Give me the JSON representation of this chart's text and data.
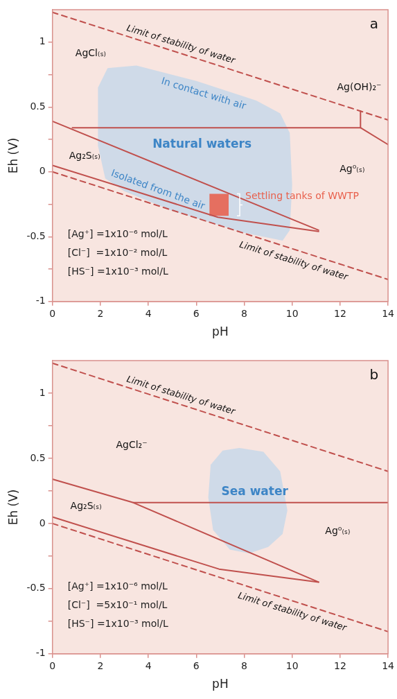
{
  "chart_data": [
    {
      "type": "line",
      "title": "a",
      "xlabel": "pH",
      "ylabel": "Eh (V)",
      "xlim": [
        0,
        14
      ],
      "ylim": [
        -1,
        1.25
      ],
      "xticks": [
        0,
        2,
        4,
        6,
        8,
        10,
        12,
        14
      ],
      "yticks": [
        -1,
        {
          "value": -0.75,
          "label": null
        },
        -0.5,
        {
          "value": -0.25,
          "label": null
        },
        0,
        {
          "value": 0.25,
          "label": null
        },
        0.5,
        {
          "value": 0.75,
          "label": null
        },
        1
      ],
      "grid": false,
      "legend": false,
      "series": [
        {
          "type": "area",
          "name": "Natural waters",
          "color": "#c8d8e8",
          "x": [
            2.3,
            3.5,
            6,
            8.5,
            9.5,
            9.9,
            10,
            9.9,
            9.6,
            8,
            5,
            3,
            2.2,
            1.9,
            1.9,
            2.3
          ],
          "values": [
            0.8,
            0.82,
            0.7,
            0.55,
            0.45,
            0.3,
            -0.1,
            -0.45,
            -0.53,
            -0.47,
            -0.3,
            -0.15,
            -0.05,
            0.2,
            0.65,
            0.8
          ]
        },
        {
          "type": "area",
          "name": "Settling tanks of WWTP",
          "color": "#e8604c",
          "x": [
            6.55,
            7.35,
            7.35,
            6.55,
            6.55
          ],
          "values": [
            -0.17,
            -0.17,
            -0.34,
            -0.34,
            -0.17
          ]
        },
        {
          "type": "line",
          "color": "#c0504d",
          "line_style": "dashed",
          "x": [
            0,
            14
          ],
          "values": [
            1.23,
            0.4
          ]
        },
        {
          "type": "line",
          "color": "#c0504d",
          "line_style": "dashed",
          "x": [
            0,
            14
          ],
          "values": [
            0,
            -0.83
          ]
        },
        {
          "type": "line",
          "color": "#c0504d",
          "x": [
            0.83,
            12.85,
            12.85
          ],
          "values": [
            0.34,
            0.34,
            0.47
          ]
        },
        {
          "type": "line",
          "color": "#c0504d",
          "x": [
            12.85,
            14
          ],
          "values": [
            0.34,
            0.21
          ]
        },
        {
          "type": "line",
          "color": "#c0504d",
          "x": [
            0,
            11.1
          ],
          "values": [
            0.39,
            -0.45
          ]
        },
        {
          "type": "line",
          "color": "#c0504d",
          "x": [
            0,
            6.9,
            11.1
          ],
          "values": [
            0.05,
            -0.35,
            -0.46
          ]
        }
      ],
      "annotations": [
        "Limit of stability of water",
        "Limit of stability of water",
        "AgCl₍ₛ₎",
        "Ag₂S₍ₛ₎",
        "Ag⁰₍ₛ₎",
        "Ag(OH)₂⁻",
        "In contact with air",
        "Isolated from the air",
        "[Ag⁺] =1x10⁻⁶ mol/L",
        "[Cl⁻]  =1x10⁻² mol/L",
        "[HS⁻] =1x10⁻³ mol/L"
      ]
    },
    {
      "type": "line",
      "title": "b",
      "xlabel": "pH",
      "ylabel": "Eh (V)",
      "xlim": [
        0,
        14
      ],
      "ylim": [
        -1,
        1.25
      ],
      "xticks": [
        0,
        2,
        4,
        6,
        8,
        10,
        12,
        14
      ],
      "yticks": [
        -1,
        {
          "value": -0.75,
          "label": null
        },
        -0.5,
        {
          "value": -0.25,
          "label": null
        },
        0,
        {
          "value": 0.25,
          "label": null
        },
        0.5,
        {
          "value": 0.75,
          "label": null
        },
        1
      ],
      "grid": false,
      "legend": false,
      "series": [
        {
          "type": "area",
          "name": "Sea water",
          "color": "#c8d8e8",
          "x": [
            7.8,
            8.8,
            9.5,
            9.8,
            9.6,
            9,
            8.2,
            7.4,
            6.7,
            6.5,
            6.6,
            7.1,
            7.8
          ],
          "values": [
            0.58,
            0.55,
            0.4,
            0.1,
            -0.08,
            -0.18,
            -0.23,
            -0.2,
            -0.05,
            0.2,
            0.45,
            0.56,
            0.58
          ]
        },
        {
          "type": "line",
          "color": "#c0504d",
          "line_style": "dashed",
          "x": [
            0,
            14
          ],
          "values": [
            1.23,
            0.4
          ]
        },
        {
          "type": "line",
          "color": "#c0504d",
          "line_style": "dashed",
          "x": [
            0,
            14
          ],
          "values": [
            0,
            -0.83
          ]
        },
        {
          "type": "line",
          "color": "#c0504d",
          "x": [
            3.37,
            14
          ],
          "values": [
            0.16,
            0.16
          ]
        },
        {
          "type": "line",
          "color": "#c0504d",
          "x": [
            0,
            3.37,
            11.1
          ],
          "values": [
            0.34,
            0.16,
            -0.45
          ]
        },
        {
          "type": "line",
          "color": "#c0504d",
          "x": [
            0,
            6.95,
            11.1
          ],
          "values": [
            0.05,
            -0.35,
            -0.45
          ]
        }
      ],
      "annotations": [
        "Limit of stability of water",
        "Limit of stability of water",
        "AgCl₂⁻",
        "Ag₂S₍ₛ₎",
        "Ag⁰₍ₛ₎",
        "[Ag⁺] =1x10⁻⁶ mol/L",
        "[Cl⁻]  =5x10⁻¹ mol/L",
        "[HS⁻] =1x10⁻³ mol/L"
      ]
    }
  ]
}
